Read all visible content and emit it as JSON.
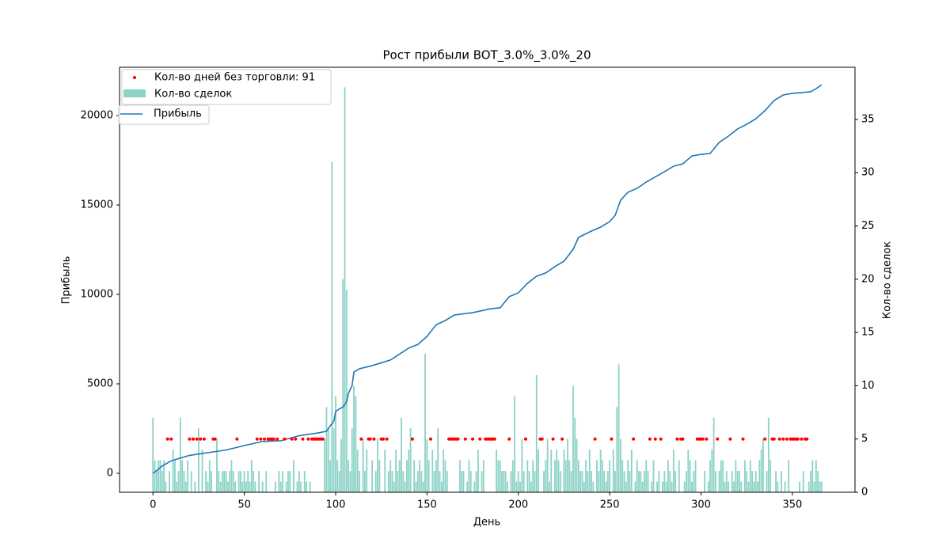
{
  "chart_data": {
    "type": "combo",
    "title": "Рост прибыли BOT_3.0%_3.0%_20",
    "xlabel": "День",
    "ylabel": "Прибыль",
    "y2label": "Кол-во сделок",
    "xlim": [
      -18.3,
      384.3
    ],
    "xticks": [
      0,
      50,
      100,
      150,
      200,
      250,
      300,
      350
    ],
    "ylim": [
      -1062,
      22699
    ],
    "yticks": [
      0,
      5000,
      10000,
      15000,
      20000
    ],
    "y2lim": [
      0,
      39.89
    ],
    "y2ticks": [
      0,
      5,
      10,
      15,
      20,
      25,
      30,
      35
    ],
    "legend": "upper left",
    "series": [
      {
        "name": "Кол-во дней без торговли: 91",
        "type": "scatter",
        "color": "#ff0000",
        "axis": "y2",
        "x": [
          8,
          10,
          20,
          22,
          24,
          26,
          28,
          33,
          34,
          46,
          57,
          59,
          61,
          63,
          64,
          65,
          66,
          68,
          72,
          76,
          78,
          82,
          85,
          87,
          88,
          89,
          90,
          91,
          92,
          93,
          114,
          118,
          119,
          121,
          125,
          126,
          128,
          142,
          152,
          162,
          163,
          164,
          165,
          166,
          167,
          171,
          175,
          179,
          182,
          183,
          184,
          185,
          186,
          187,
          195,
          204,
          212,
          213,
          219,
          224,
          242,
          251,
          263,
          272,
          275,
          278,
          287,
          289,
          290,
          298,
          299,
          300,
          301,
          303,
          309,
          316,
          323,
          335,
          339,
          340,
          343,
          345,
          347,
          349,
          350,
          351,
          352,
          353,
          355,
          357,
          358
        ],
        "values": [
          5,
          5,
          5,
          5,
          5,
          5,
          5,
          5,
          5,
          5,
          5,
          5,
          5,
          5,
          5,
          5,
          5,
          5,
          5,
          5,
          5,
          5,
          5,
          5,
          5,
          5,
          5,
          5,
          5,
          5,
          5,
          5,
          5,
          5,
          5,
          5,
          5,
          5,
          5,
          5,
          5,
          5,
          5,
          5,
          5,
          5,
          5,
          5,
          5,
          5,
          5,
          5,
          5,
          5,
          5,
          5,
          5,
          5,
          5,
          5,
          5,
          5,
          5,
          5,
          5,
          5,
          5,
          5,
          5,
          5,
          5,
          5,
          5,
          5,
          5,
          5,
          5,
          5,
          5,
          5,
          5,
          5,
          5,
          5,
          5,
          5,
          5,
          5,
          5,
          5,
          5
        ]
      },
      {
        "name": "Кол-во сделок",
        "type": "bar",
        "color": "#8dd3c7",
        "axis": "y2",
        "x": [
          0,
          1,
          2,
          3,
          4,
          5,
          6,
          7,
          8,
          9,
          10,
          11,
          12,
          13,
          14,
          15,
          16,
          17,
          18,
          19,
          20,
          21,
          22,
          23,
          24,
          25,
          26,
          27,
          28,
          29,
          30,
          31,
          32,
          33,
          34,
          35,
          36,
          37,
          38,
          39,
          40,
          41,
          42,
          43,
          44,
          45,
          46,
          47,
          48,
          49,
          50,
          51,
          52,
          53,
          54,
          55,
          56,
          57,
          58,
          59,
          60,
          61,
          62,
          63,
          64,
          65,
          66,
          67,
          68,
          69,
          70,
          71,
          72,
          73,
          74,
          75,
          76,
          77,
          78,
          79,
          80,
          81,
          82,
          83,
          84,
          85,
          86,
          87,
          88,
          89,
          90,
          91,
          92,
          93,
          94,
          95,
          96,
          97,
          98,
          99,
          100,
          101,
          102,
          103,
          104,
          105,
          106,
          107,
          108,
          109,
          110,
          111,
          112,
          113,
          114,
          115,
          116,
          117,
          118,
          119,
          120,
          121,
          122,
          123,
          124,
          125,
          126,
          127,
          128,
          129,
          130,
          131,
          132,
          133,
          134,
          135,
          136,
          137,
          138,
          139,
          140,
          141,
          142,
          143,
          144,
          145,
          146,
          147,
          148,
          149,
          150,
          151,
          152,
          153,
          154,
          155,
          156,
          157,
          158,
          159,
          160,
          161,
          162,
          163,
          164,
          165,
          166,
          167,
          168,
          169,
          170,
          171,
          172,
          173,
          174,
          175,
          176,
          177,
          178,
          179,
          180,
          181,
          182,
          183,
          184,
          185,
          186,
          187,
          188,
          189,
          190,
          191,
          192,
          193,
          194,
          195,
          196,
          197,
          198,
          199,
          200,
          201,
          202,
          203,
          204,
          205,
          206,
          207,
          208,
          209,
          210,
          211,
          212,
          213,
          214,
          215,
          216,
          217,
          218,
          219,
          220,
          221,
          222,
          223,
          224,
          225,
          226,
          227,
          228,
          229,
          230,
          231,
          232,
          233,
          234,
          235,
          236,
          237,
          238,
          239,
          240,
          241,
          242,
          243,
          244,
          245,
          246,
          247,
          248,
          249,
          250,
          251,
          252,
          253,
          254,
          255,
          256,
          257,
          258,
          259,
          260,
          261,
          262,
          263,
          264,
          265,
          266,
          267,
          268,
          269,
          270,
          271,
          272,
          273,
          274,
          275,
          276,
          277,
          278,
          279,
          280,
          281,
          282,
          283,
          284,
          285,
          286,
          287,
          288,
          289,
          290,
          291,
          292,
          293,
          294,
          295,
          296,
          297,
          298,
          299,
          300,
          301,
          302,
          303,
          304,
          305,
          306,
          307,
          308,
          309,
          310,
          311,
          312,
          313,
          314,
          315,
          316,
          317,
          318,
          319,
          320,
          321,
          322,
          323,
          324,
          325,
          326,
          327,
          328,
          329,
          330,
          331,
          332,
          333,
          334,
          335,
          336,
          337,
          338,
          339,
          340,
          341,
          342,
          343,
          344,
          345,
          346,
          347,
          348,
          349,
          350,
          351,
          352,
          353,
          354,
          355,
          356,
          357,
          358,
          359,
          360,
          361,
          362,
          363,
          364,
          365,
          366
        ],
        "values": [
          7,
          3,
          2,
          3,
          3,
          2,
          3,
          1,
          0,
          2,
          0,
          4,
          3,
          1,
          2,
          7,
          3,
          2,
          1,
          3,
          0,
          2,
          0,
          1,
          0,
          6,
          0,
          4,
          0,
          2,
          1,
          3,
          2,
          0,
          0,
          5,
          2,
          1,
          2,
          2,
          2,
          1,
          2,
          3,
          2,
          1,
          0,
          2,
          2,
          1,
          2,
          1,
          2,
          1,
          3,
          2,
          1,
          0,
          2,
          0,
          1,
          0,
          2,
          0,
          0,
          0,
          0,
          1,
          0,
          2,
          1,
          2,
          0,
          1,
          2,
          2,
          0,
          3,
          0,
          1,
          2,
          1,
          0,
          2,
          1,
          0,
          1,
          0,
          0,
          0,
          0,
          0,
          0,
          0,
          5,
          8,
          6,
          3,
          31,
          6,
          9,
          3,
          2,
          5,
          20,
          38,
          19,
          3,
          2,
          6,
          10,
          9,
          4,
          2,
          0,
          5,
          2,
          4,
          0,
          0,
          3,
          0,
          2,
          5,
          3,
          0,
          0,
          4,
          0,
          2,
          3,
          2,
          1,
          4,
          2,
          3,
          7,
          2,
          1,
          3,
          4,
          6,
          0,
          3,
          1,
          2,
          3,
          2,
          1,
          13,
          5,
          3,
          0,
          4,
          2,
          3,
          6,
          2,
          1,
          4,
          3,
          2,
          0,
          0,
          0,
          0,
          0,
          0,
          3,
          2,
          2,
          0,
          1,
          3,
          2,
          0,
          1,
          2,
          4,
          0,
          2,
          3,
          0,
          0,
          0,
          0,
          0,
          0,
          4,
          3,
          3,
          2,
          2,
          2,
          1,
          0,
          2,
          3,
          9,
          1,
          2,
          1,
          5,
          2,
          0,
          3,
          2,
          1,
          3,
          2,
          11,
          4,
          0,
          0,
          2,
          3,
          5,
          1,
          4,
          0,
          3,
          4,
          3,
          2,
          0,
          4,
          3,
          5,
          3,
          2,
          10,
          7,
          5,
          3,
          2,
          2,
          1,
          3,
          2,
          4,
          2,
          1,
          0,
          3,
          2,
          4,
          3,
          2,
          1,
          2,
          3,
          0,
          4,
          2,
          8,
          12,
          5,
          3,
          2,
          1,
          3,
          2,
          4,
          0,
          1,
          3,
          2,
          2,
          1,
          2,
          3,
          2,
          0,
          1,
          3,
          0,
          1,
          2,
          0,
          1,
          2,
          1,
          3,
          2,
          1,
          4,
          2,
          0,
          3,
          0,
          0,
          1,
          2,
          4,
          3,
          1,
          2,
          3,
          0,
          0,
          0,
          0,
          2,
          0,
          1,
          3,
          4,
          7,
          2,
          0,
          2,
          3,
          3,
          1,
          2,
          1,
          0,
          2,
          1,
          3,
          2,
          2,
          1,
          0,
          3,
          2,
          1,
          3,
          2,
          1,
          2,
          1,
          3,
          4,
          5,
          0,
          2,
          7,
          3,
          0,
          0,
          2,
          1,
          0,
          2,
          0,
          1,
          0,
          3,
          0,
          0,
          0,
          0,
          0,
          1,
          0,
          2,
          0,
          0,
          1,
          2,
          3,
          1,
          3,
          2,
          1,
          1
        ]
      },
      {
        "name": "Прибыль",
        "type": "line",
        "color": "#1f77b4",
        "x": [
          0,
          2,
          5,
          10,
          15,
          20,
          30,
          40,
          50,
          60,
          70,
          80,
          90,
          95,
          97,
          99,
          100,
          102,
          104,
          106,
          107,
          109,
          110,
          113,
          120,
          130,
          140,
          145,
          150,
          155,
          160,
          165,
          175,
          185,
          190,
          195,
          200,
          205,
          210,
          215,
          220,
          225,
          230,
          233,
          240,
          245,
          250,
          253,
          256,
          260,
          265,
          270,
          280,
          285,
          290,
          295,
          300,
          305,
          310,
          315,
          320,
          325,
          330,
          335,
          340,
          345,
          350,
          355,
          360,
          363,
          366
        ],
        "values": [
          0,
          150,
          400,
          700,
          850,
          1000,
          1150,
          1300,
          1550,
          1780,
          1820,
          2100,
          2250,
          2350,
          2650,
          2900,
          3450,
          3600,
          3700,
          4000,
          4470,
          4900,
          5660,
          5840,
          6020,
          6330,
          7000,
          7200,
          7650,
          8300,
          8540,
          8850,
          8980,
          9200,
          9250,
          9870,
          10090,
          10620,
          11020,
          11200,
          11550,
          11860,
          12520,
          13190,
          13540,
          13760,
          14070,
          14420,
          15270,
          15710,
          15930,
          16280,
          16860,
          17170,
          17300,
          17740,
          17830,
          17880,
          18500,
          18850,
          19250,
          19510,
          19820,
          20270,
          20840,
          21150,
          21240,
          21280,
          21330,
          21500,
          21720
        ]
      }
    ]
  }
}
